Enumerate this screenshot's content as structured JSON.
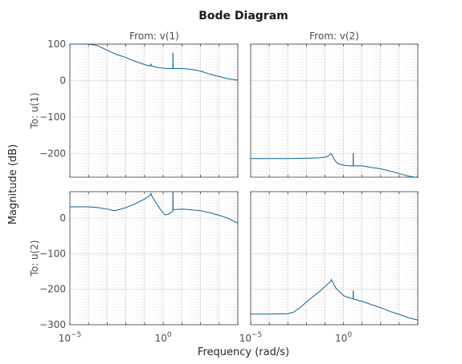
{
  "chart_data": {
    "type": "line",
    "title": "Bode Diagram",
    "xlabel": "Frequency  (rad/s)",
    "ylabel": "Magnitude (dB)",
    "x_scale": "log",
    "grid": true,
    "color": "#0d6596",
    "columns": [
      "From: v(1)",
      "From: v(2)"
    ],
    "rows": [
      "To: u(1)",
      "To: u(2)"
    ],
    "xlim": [
      1e-05,
      10000
    ],
    "x_ticks": [
      {
        "value": 1e-05,
        "base": "10",
        "exp": "-5"
      },
      {
        "value": 1,
        "base": "10",
        "exp": "0"
      }
    ],
    "y_ticks_row1": [
      100,
      0,
      -100,
      -200
    ],
    "y_ticks_row2": [
      0,
      -100,
      -200,
      -300
    ],
    "panels": [
      {
        "row": 0,
        "col": 0,
        "ylim": [
          -265,
          100
        ],
        "points": [
          [
            1e-05,
            100
          ],
          [
            0.0001,
            100
          ],
          [
            0.0003,
            96
          ],
          [
            0.001,
            83
          ],
          [
            0.003,
            72
          ],
          [
            0.01,
            63
          ],
          [
            0.03,
            53
          ],
          [
            0.1,
            44
          ],
          [
            0.2,
            40
          ],
          [
            0.22,
            45
          ],
          [
            0.24,
            40
          ],
          [
            0.5,
            36
          ],
          [
            1,
            34
          ],
          [
            2,
            33
          ],
          [
            3,
            33
          ],
          [
            3.3,
            33
          ],
          [
            3.3,
            75
          ],
          [
            3.35,
            75
          ],
          [
            3.4,
            33
          ],
          [
            10,
            33
          ],
          [
            30,
            31
          ],
          [
            100,
            26
          ],
          [
            300,
            18
          ],
          [
            1000,
            11
          ],
          [
            3000,
            5
          ],
          [
            10000,
            1
          ]
        ]
      },
      {
        "row": 0,
        "col": 1,
        "ylim": [
          -265,
          100
        ],
        "points": [
          [
            1e-05,
            -214
          ],
          [
            0.0001,
            -214
          ],
          [
            0.001,
            -214
          ],
          [
            0.01,
            -213
          ],
          [
            0.05,
            -212
          ],
          [
            0.1,
            -210
          ],
          [
            0.15,
            -207
          ],
          [
            0.2,
            -202
          ],
          [
            0.22,
            -200
          ],
          [
            0.26,
            -208
          ],
          [
            0.35,
            -220
          ],
          [
            0.5,
            -228
          ],
          [
            1,
            -232
          ],
          [
            2,
            -234
          ],
          [
            3,
            -234
          ],
          [
            3.3,
            -234
          ],
          [
            3.3,
            -200
          ],
          [
            3.35,
            -200
          ],
          [
            3.4,
            -234
          ],
          [
            10,
            -234
          ],
          [
            30,
            -238
          ],
          [
            100,
            -242
          ],
          [
            300,
            -248
          ],
          [
            1000,
            -255
          ],
          [
            3000,
            -262
          ],
          [
            10000,
            -266
          ]
        ]
      },
      {
        "row": 1,
        "col": 0,
        "ylim": [
          -300,
          75
        ],
        "points": [
          [
            1e-05,
            32
          ],
          [
            0.0001,
            32
          ],
          [
            0.0003,
            30
          ],
          [
            0.001,
            26
          ],
          [
            0.002,
            22
          ],
          [
            0.003,
            22
          ],
          [
            0.01,
            30
          ],
          [
            0.03,
            40
          ],
          [
            0.1,
            54
          ],
          [
            0.2,
            65
          ],
          [
            0.22,
            70
          ],
          [
            0.26,
            60
          ],
          [
            0.4,
            45
          ],
          [
            0.7,
            25
          ],
          [
            1,
            15
          ],
          [
            1.3,
            9
          ],
          [
            2,
            12
          ],
          [
            3,
            18
          ],
          [
            3.3,
            20
          ],
          [
            3.3,
            75
          ],
          [
            3.35,
            75
          ],
          [
            3.4,
            24
          ],
          [
            10,
            26
          ],
          [
            30,
            24
          ],
          [
            100,
            21
          ],
          [
            300,
            16
          ],
          [
            1000,
            8
          ],
          [
            3000,
            0
          ],
          [
            10000,
            -14
          ]
        ]
      },
      {
        "row": 1,
        "col": 1,
        "ylim": [
          -300,
          75
        ],
        "points": [
          [
            1e-05,
            -270
          ],
          [
            0.0001,
            -270
          ],
          [
            0.001,
            -269
          ],
          [
            0.002,
            -265
          ],
          [
            0.005,
            -250
          ],
          [
            0.01,
            -236
          ],
          [
            0.02,
            -223
          ],
          [
            0.05,
            -207
          ],
          [
            0.1,
            -192
          ],
          [
            0.2,
            -178
          ],
          [
            0.22,
            -173
          ],
          [
            0.26,
            -180
          ],
          [
            0.4,
            -198
          ],
          [
            0.7,
            -210
          ],
          [
            1,
            -218
          ],
          [
            2,
            -224
          ],
          [
            3,
            -226
          ],
          [
            3.3,
            -226
          ],
          [
            3.3,
            -205
          ],
          [
            3.35,
            -205
          ],
          [
            3.4,
            -228
          ],
          [
            10,
            -234
          ],
          [
            30,
            -243
          ],
          [
            100,
            -252
          ],
          [
            300,
            -262
          ],
          [
            1000,
            -271
          ],
          [
            3000,
            -280
          ],
          [
            10000,
            -287
          ]
        ]
      }
    ]
  }
}
